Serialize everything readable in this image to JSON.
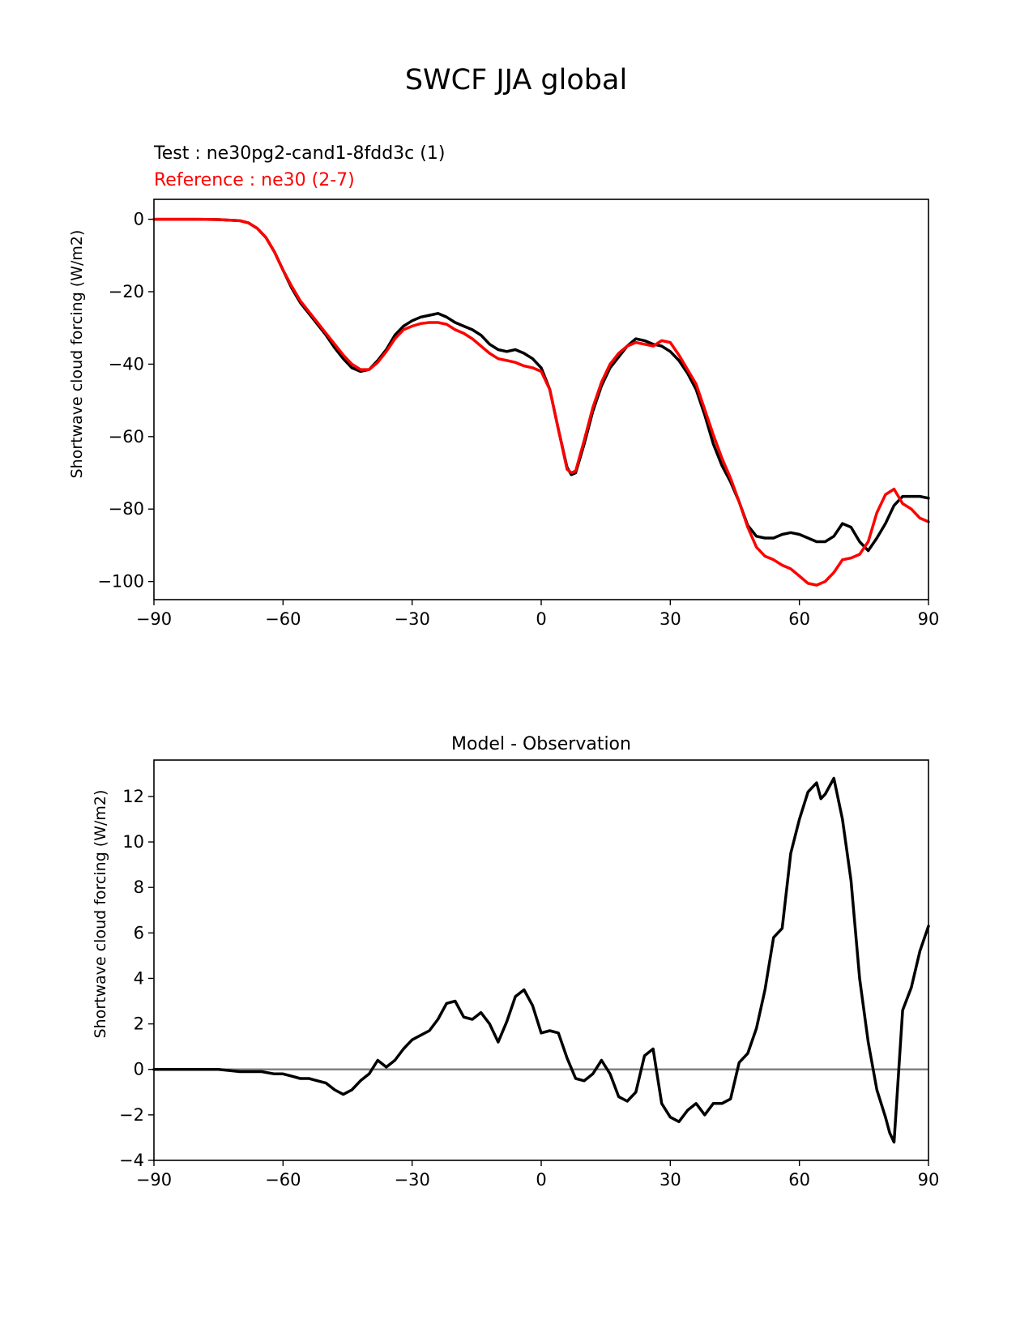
{
  "figure_title": "SWCF JJA global",
  "colors": {
    "test": "#000000",
    "reference": "#ff0000",
    "zero_line": "#808080"
  },
  "chart_data": [
    {
      "type": "line",
      "test_label": "Test : ne30pg2-cand1-8fdd3c (1)",
      "reference_label": "Reference : ne30 (2-7)",
      "title": "",
      "xlabel": "",
      "ylabel": "Shortwave cloud forcing (W/m2)",
      "xlim": [
        -90,
        90
      ],
      "ylim": [
        -105,
        5.5
      ],
      "xticks": [
        -90,
        -60,
        -30,
        0,
        30,
        60,
        90
      ],
      "xtick_labels": [
        "−90",
        "−60",
        "−30",
        "0",
        "30",
        "60",
        "90"
      ],
      "yticks": [
        0,
        -20,
        -40,
        -60,
        -80,
        -100
      ],
      "ytick_labels": [
        "0",
        "−20",
        "−40",
        "−60",
        "−80",
        "−100"
      ],
      "series": [
        {
          "name": "Test",
          "color": "#000000",
          "x": [
            -90,
            -80,
            -75,
            -70,
            -68,
            -66,
            -64,
            -62,
            -60,
            -58,
            -56,
            -54,
            -52,
            -50,
            -48,
            -46,
            -44,
            -42,
            -40,
            -38,
            -36,
            -34,
            -32,
            -30,
            -28,
            -26,
            -24,
            -22,
            -20,
            -18,
            -16,
            -14,
            -12,
            -10,
            -8,
            -6,
            -4,
            -2,
            0,
            2,
            4,
            6,
            7,
            8,
            10,
            12,
            14,
            16,
            18,
            20,
            22,
            24,
            26,
            28,
            30,
            32,
            34,
            36,
            38,
            40,
            42,
            44,
            46,
            48,
            50,
            52,
            54,
            56,
            58,
            60,
            62,
            64,
            66,
            68,
            70,
            72,
            74,
            76,
            78,
            80,
            82,
            84,
            86,
            88,
            90
          ],
          "y": [
            0,
            0,
            -0.1,
            -0.4,
            -1,
            -2.5,
            -5,
            -9,
            -14,
            -19,
            -23,
            -26,
            -29,
            -32,
            -35.5,
            -38.5,
            -41,
            -42,
            -41.5,
            -39,
            -36,
            -32,
            -29.5,
            -28,
            -27,
            -26.5,
            -26,
            -27,
            -28.5,
            -29.5,
            -30.5,
            -32,
            -34.5,
            -36,
            -36.5,
            -36,
            -37,
            -38.5,
            -41,
            -47,
            -58,
            -68.5,
            -70.5,
            -70,
            -62,
            -53,
            -46,
            -41,
            -38,
            -35,
            -33,
            -33.5,
            -34.5,
            -35,
            -36.5,
            -39,
            -42.5,
            -47,
            -54,
            -62,
            -68,
            -72.5,
            -78,
            -84.5,
            -87.5,
            -88,
            -88,
            -87,
            -86.5,
            -87,
            -88,
            -89,
            -89,
            -87.5,
            -84,
            -85,
            -89,
            -91.5,
            -88,
            -84,
            -79,
            -76.5,
            -76.5,
            -76.5,
            -77
          ]
        },
        {
          "name": "Reference",
          "color": "#ff0000",
          "x": [
            -90,
            -80,
            -75,
            -70,
            -68,
            -66,
            -64,
            -62,
            -60,
            -58,
            -56,
            -54,
            -52,
            -50,
            -48,
            -46,
            -44,
            -42,
            -40,
            -38,
            -36,
            -34,
            -32,
            -30,
            -28,
            -26,
            -24,
            -22,
            -20,
            -18,
            -16,
            -14,
            -12,
            -10,
            -8,
            -6,
            -4,
            -2,
            0,
            2,
            4,
            6,
            7,
            8,
            10,
            12,
            14,
            16,
            18,
            20,
            22,
            24,
            26,
            28,
            30,
            32,
            34,
            36,
            38,
            40,
            42,
            44,
            46,
            48,
            50,
            52,
            54,
            56,
            58,
            60,
            62,
            64,
            66,
            68,
            70,
            72,
            74,
            76,
            78,
            80,
            82,
            84,
            86,
            88,
            90
          ],
          "y": [
            0,
            0,
            -0.1,
            -0.4,
            -1,
            -2.5,
            -5,
            -9,
            -14,
            -18.5,
            -22.5,
            -25.5,
            -28.5,
            -31.5,
            -34.5,
            -37.5,
            -40,
            -41.5,
            -41.5,
            -39.5,
            -36.5,
            -33,
            -30.5,
            -29.5,
            -28.8,
            -28.5,
            -28.5,
            -29,
            -30.5,
            -31.5,
            -33,
            -35,
            -37,
            -38.5,
            -39,
            -39.5,
            -40.5,
            -41,
            -42,
            -47,
            -58,
            -69,
            -70,
            -69.5,
            -61,
            -52,
            -45,
            -40,
            -37,
            -35,
            -34,
            -34.5,
            -35,
            -33.5,
            -34,
            -37.5,
            -41.5,
            -45.5,
            -52.5,
            -59.5,
            -66,
            -71.5,
            -78,
            -85,
            -90.5,
            -93,
            -94,
            -95.5,
            -96.5,
            -98.5,
            -100.5,
            -101,
            -100,
            -97.5,
            -94,
            -93.5,
            -92.5,
            -89,
            -81,
            -76,
            -74.5,
            -78.5,
            -80,
            -82.5,
            -83.5
          ]
        }
      ]
    },
    {
      "type": "line",
      "title": "Model - Observation",
      "xlabel": "",
      "ylabel": "Shortwave cloud forcing (W/m2)",
      "xlim": [
        -90,
        90
      ],
      "ylim": [
        -4,
        13.6
      ],
      "xticks": [
        -90,
        -60,
        -30,
        0,
        30,
        60,
        90
      ],
      "xtick_labels": [
        "−90",
        "−60",
        "−30",
        "0",
        "30",
        "60",
        "90"
      ],
      "yticks": [
        -4,
        -2,
        0,
        2,
        4,
        6,
        8,
        10,
        12
      ],
      "ytick_labels": [
        "−4",
        "−2",
        "0",
        "2",
        "4",
        "6",
        "8",
        "10",
        "12"
      ],
      "zero_line": true,
      "series": [
        {
          "name": "Model - Observation",
          "color": "#000000",
          "x": [
            -90,
            -75,
            -70,
            -65,
            -62,
            -60,
            -58,
            -56,
            -54,
            -52,
            -50,
            -48,
            -46,
            -44,
            -42,
            -40,
            -38,
            -36,
            -34,
            -32,
            -30,
            -28,
            -26,
            -24,
            -22,
            -20,
            -18,
            -16,
            -14,
            -12,
            -10,
            -8,
            -6,
            -4,
            -2,
            0,
            2,
            4,
            6,
            8,
            10,
            12,
            14,
            16,
            18,
            20,
            22,
            24,
            26,
            28,
            30,
            32,
            34,
            36,
            38,
            40,
            42,
            44,
            46,
            48,
            50,
            52,
            54,
            56,
            58,
            60,
            62,
            64,
            65,
            66,
            68,
            70,
            72,
            74,
            76,
            78,
            80,
            81,
            82,
            84,
            86,
            88,
            90
          ],
          "y": [
            0,
            0,
            -0.1,
            -0.1,
            -0.2,
            -0.2,
            -0.3,
            -0.4,
            -0.4,
            -0.5,
            -0.6,
            -0.9,
            -1.1,
            -0.9,
            -0.5,
            -0.2,
            0.4,
            0.1,
            0.4,
            0.9,
            1.3,
            1.5,
            1.7,
            2.2,
            2.9,
            3,
            2.3,
            2.2,
            2.5,
            2,
            1.2,
            2.1,
            3.2,
            3.5,
            2.8,
            1.6,
            1.7,
            1.6,
            0.5,
            -0.4,
            -0.5,
            -0.2,
            0.4,
            -0.2,
            -1.2,
            -1.4,
            -1,
            0.6,
            0.9,
            -1.5,
            -2.1,
            -2.3,
            -1.8,
            -1.5,
            -2,
            -1.5,
            -1.5,
            -1.3,
            0.3,
            0.7,
            1.8,
            3.5,
            5.8,
            6.2,
            9.5,
            11,
            12.2,
            12.6,
            11.9,
            12.1,
            12.8,
            11,
            8.3,
            4,
            1.2,
            -0.9,
            -2.1,
            -2.8,
            -3.2,
            2.6,
            3.6,
            5.2,
            6.3
          ]
        }
      ]
    }
  ]
}
